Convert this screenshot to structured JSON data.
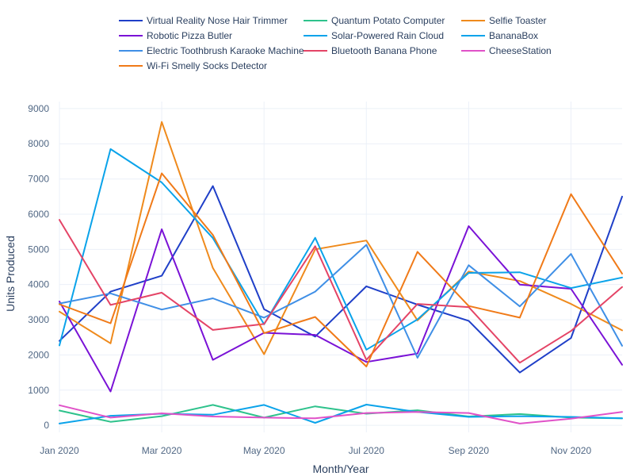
{
  "chart_data": {
    "type": "line",
    "xlabel": "Month/Year",
    "ylabel": "Units Produced",
    "ylim": [
      -200,
      9200
    ],
    "yticks": [
      0,
      1000,
      2000,
      3000,
      4000,
      5000,
      6000,
      7000,
      8000,
      9000
    ],
    "x": [
      "2020-01",
      "2020-02",
      "2020-03",
      "2020-04",
      "2020-05",
      "2020-06",
      "2020-07",
      "2020-08",
      "2020-09",
      "2020-10",
      "2020-11",
      "2020-12"
    ],
    "xticks": [
      {
        "index": 0,
        "label": "Jan 2020"
      },
      {
        "index": 2,
        "label": "Mar 2020"
      },
      {
        "index": 4,
        "label": "May 2020"
      },
      {
        "index": 6,
        "label": "Jul 2020"
      },
      {
        "index": 8,
        "label": "Sep 2020"
      },
      {
        "index": 10,
        "label": "Nov 2020"
      }
    ],
    "grid": true,
    "legend_position": "top",
    "series": [
      {
        "name": "Virtual Reality Nose Hair Trimmer",
        "color": "#1f3fc8",
        "values": [
          2400,
          3800,
          4250,
          6800,
          3300,
          2520,
          3950,
          3430,
          2970,
          1500,
          2480,
          6500
        ]
      },
      {
        "name": "Quantum Potato Computer",
        "color": "#2ec28c",
        "values": [
          420,
          100,
          260,
          580,
          220,
          540,
          330,
          430,
          250,
          320,
          220,
          200
        ]
      },
      {
        "name": "Selfie Toaster",
        "color": "#ef8a1c",
        "values": [
          3230,
          2330,
          8620,
          4470,
          2020,
          5000,
          5250,
          2980,
          4370,
          4100,
          3450,
          2700
        ]
      },
      {
        "name": "Robotic Pizza Butler",
        "color": "#7a12d6",
        "values": [
          3520,
          960,
          5570,
          1860,
          2630,
          2570,
          1800,
          2040,
          5660,
          4000,
          3880,
          1720
        ]
      },
      {
        "name": "Solar-Powered Rain Cloud",
        "color": "#0aa3ea",
        "values": [
          2270,
          7850,
          6900,
          5320,
          2870,
          5330,
          2150,
          3010,
          4330,
          4350,
          3900,
          4200
        ]
      },
      {
        "name": "BananaBox",
        "color": "#0aa3ea",
        "values": [
          50,
          270,
          330,
          300,
          580,
          70,
          590,
          380,
          240,
          260,
          240,
          200
        ]
      },
      {
        "name": "Electric Toothbrush Karaoke Machine",
        "color": "#3f8fe6",
        "values": [
          3460,
          3750,
          3290,
          3610,
          3060,
          3800,
          5130,
          1920,
          4550,
          3380,
          4870,
          2260
        ]
      },
      {
        "name": "Bluetooth Banana Phone",
        "color": "#e44466",
        "values": [
          5840,
          3420,
          3770,
          2710,
          2880,
          5090,
          1860,
          3450,
          3360,
          1780,
          2680,
          3930
        ]
      },
      {
        "name": "CheeseStation",
        "color": "#e052c8",
        "values": [
          570,
          220,
          340,
          250,
          220,
          200,
          350,
          380,
          350,
          50,
          190,
          380
        ]
      },
      {
        "name": "Wi-Fi Smelly Socks Detector",
        "color": "#f07a18",
        "values": [
          3440,
          2900,
          7160,
          5410,
          2620,
          3080,
          1670,
          4930,
          3390,
          3060,
          6570,
          4310
        ]
      }
    ]
  }
}
